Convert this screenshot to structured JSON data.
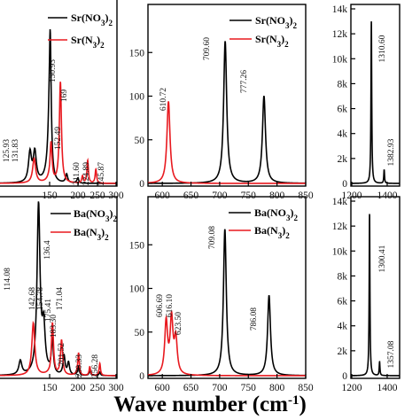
{
  "figure": {
    "xlabel_main": "Wave number (cm",
    "xlabel_sup": "-1",
    "xlabel_end": ")"
  },
  "legend_labels": {
    "sr_no3": {
      "base": "Sr(NO",
      "sub1": "3",
      "end": ")",
      "sub2": "2"
    },
    "sr_n3": {
      "base": "Sr(N",
      "sub1": "3",
      "end": ")",
      "sub2": "2"
    },
    "ba_no3": {
      "base": "Ba(NO",
      "sub1": "3",
      "end": ")",
      "sub2": "2"
    },
    "ba_n3": {
      "base": "Ba(N",
      "sub1": "3",
      "end": ")",
      "sub2": "2"
    },
    "ba_no3_alt": {
      "base": "Ba",
      "mid": "(",
      "tail": "NO",
      "sub1": "3",
      "end": ")",
      "sub2": "2"
    },
    "ba_n3_alt": {
      "base": "Ba",
      "mid": "(",
      "tail": "N",
      "sub1": "3",
      "end": ")",
      "sub2": "2"
    }
  },
  "colors": {
    "no3": "#000000",
    "n3": "#e8191f"
  },
  "chart_data": [
    {
      "type": "line",
      "panel": "top-left",
      "xlim": [
        0,
        300
      ],
      "ylim": [
        0,
        200
      ],
      "xticks": [
        150,
        200,
        250,
        300
      ],
      "yticks": [],
      "series": [
        {
          "name": "Sr(NO3)2",
          "color": "#000000",
          "peaks": [
            [
              125.93,
              0.17
            ],
            [
              131.83,
              0.17
            ],
            [
              150.93,
              0.88
            ],
            [
              180,
              0.05
            ],
            [
              200,
              0.03
            ]
          ]
        },
        {
          "name": "Sr(N3)2",
          "color": "#e8191f",
          "peaks": [
            [
              131,
              0.14
            ],
            [
              152.49,
              0.23
            ],
            [
              169,
              0.58
            ],
            [
              211.6,
              0.04
            ],
            [
              224.89,
              0.13
            ],
            [
              245.87,
              0.08
            ]
          ]
        }
      ],
      "annotations": [
        {
          "text": "125.93",
          "x": 125.93,
          "color": "black"
        },
        {
          "text": "131.83",
          "x": 131.83,
          "color": "black"
        },
        {
          "text": "150.93",
          "x": 150.93,
          "color": "black"
        },
        {
          "text": "152.49",
          "x": 152.49,
          "color": "red"
        },
        {
          "text": "169",
          "x": 169,
          "color": "red"
        },
        {
          "text": "211.60",
          "x": 211.6,
          "color": "black"
        },
        {
          "text": "224.89",
          "x": 224.89,
          "color": "black"
        },
        {
          "text": "245.87",
          "x": 245.87,
          "color": "black"
        }
      ],
      "legend": "top-right"
    },
    {
      "type": "line",
      "panel": "top-middle",
      "xlim": [
        575,
        850
      ],
      "ylim": [
        0,
        200
      ],
      "xticks": [
        600,
        650,
        700,
        750,
        800,
        850
      ],
      "yticks": [
        0,
        50,
        100,
        150
      ],
      "series": [
        {
          "name": "Sr(NO3)2",
          "color": "#000000",
          "peaks": [
            [
              709.6,
              163
            ],
            [
              777.26,
              100
            ]
          ]
        },
        {
          "name": "Sr(N3)2",
          "color": "#e8191f",
          "peaks": [
            [
              610.72,
              94
            ]
          ]
        }
      ],
      "annotations": [
        {
          "text": "610.72",
          "x": 610.72,
          "color": "black"
        },
        {
          "text": "709.60",
          "x": 709.6,
          "color": "black"
        },
        {
          "text": "777.26",
          "x": 777.26,
          "color": "black"
        }
      ],
      "legend": "top-right"
    },
    {
      "type": "line",
      "panel": "top-right",
      "xlim": [
        1200,
        1500
      ],
      "ylim": [
        0,
        14000
      ],
      "xticks": [
        1200,
        1400
      ],
      "yticks": [
        "0",
        "2k",
        "4k",
        "6k",
        "8k",
        "10k",
        "12k",
        "14k"
      ],
      "series": [
        {
          "name": "Sr(NO3)2",
          "color": "#000000",
          "peaks": [
            [
              1310.6,
              13000
            ],
            [
              1382.93,
              1100
            ]
          ]
        }
      ],
      "annotations": [
        {
          "text": "1310.60",
          "x": 1310.6,
          "color": "black"
        },
        {
          "text": "1382.93",
          "x": 1382.93,
          "color": "black"
        }
      ]
    },
    {
      "type": "line",
      "panel": "bottom-left",
      "xlim": [
        0,
        300
      ],
      "ylim": [
        0,
        200
      ],
      "xticks": [
        150,
        200,
        250,
        300
      ],
      "yticks": [],
      "series": [
        {
          "name": "Ba(NO3)2",
          "color": "#000000",
          "peaks": [
            [
              114.08,
              0.08
            ],
            [
              136.4,
              0.97
            ],
            [
              142.68,
              0.25
            ],
            [
              154.78,
              0.2
            ],
            [
              175.41,
              0.11
            ],
            [
              183.3,
              0.07
            ],
            [
              201.52,
              0.05
            ],
            [
              230.33,
              0.03
            ],
            [
              256.28,
              0.02
            ]
          ]
        },
        {
          "name": "Ba(N3)2",
          "color": "#e8191f",
          "peaks": [
            [
              130,
              0.3
            ],
            [
              155,
              0.3
            ],
            [
              171.04,
              0.2
            ],
            [
              201.52,
              0.13
            ],
            [
              230.33,
              0.05
            ],
            [
              256.28,
              0.07
            ]
          ]
        }
      ],
      "annotations": [
        {
          "text": "136.4",
          "x": 136.4,
          "color": "black"
        },
        {
          "text": "114.08",
          "x": 114.08,
          "color": "black"
        },
        {
          "text": "142.68",
          "x": 142.68,
          "color": "black"
        },
        {
          "text": "154.78",
          "x": 154.78,
          "color": "black"
        },
        {
          "text": "175.41",
          "x": 175.41,
          "color": "black"
        },
        {
          "text": "171.04",
          "x": 171.04,
          "color": "black"
        },
        {
          "text": "183.30",
          "x": 183.3,
          "color": "black"
        },
        {
          "text": "201.52",
          "x": 201.52,
          "color": "black"
        },
        {
          "text": "230.33",
          "x": 230.33,
          "color": "black"
        },
        {
          "text": "256.28",
          "x": 256.28,
          "color": "black"
        }
      ],
      "legend": "top-right"
    },
    {
      "type": "line",
      "panel": "bottom-middle",
      "xlim": [
        575,
        850
      ],
      "ylim": [
        0,
        200
      ],
      "xticks": [
        600,
        650,
        700,
        750,
        800,
        850
      ],
      "yticks": [
        0,
        50,
        100,
        150
      ],
      "series": [
        {
          "name": "Ba(NO3)2",
          "color": "#000000",
          "peaks": [
            [
              709.08,
              168
            ],
            [
              786.08,
              92
            ]
          ]
        },
        {
          "name": "Ba(N3)2",
          "color": "#e8191f",
          "peaks": [
            [
              606.69,
              60
            ],
            [
              616.1,
              62
            ],
            [
              623.5,
              40
            ]
          ]
        }
      ],
      "annotations": [
        {
          "text": "606.69",
          "x": 606.69,
          "color": "black"
        },
        {
          "text": "616.10",
          "x": 616.1,
          "color": "black"
        },
        {
          "text": "623.50",
          "x": 623.5,
          "color": "black"
        },
        {
          "text": "709.08",
          "x": 709.08,
          "color": "black"
        },
        {
          "text": "786.08",
          "x": 786.08,
          "color": "black"
        }
      ],
      "legend": "top-right"
    },
    {
      "type": "line",
      "panel": "bottom-right",
      "xlim": [
        1200,
        1500
      ],
      "ylim": [
        0,
        14000
      ],
      "xticks": [
        1200,
        1400
      ],
      "yticks": [
        "0",
        "2k",
        "4k",
        "6k",
        "8k",
        "10k",
        "12k",
        "14k"
      ],
      "series": [
        {
          "name": "Ba(NO3)2",
          "color": "#000000",
          "peaks": [
            [
              1300.41,
              13000
            ],
            [
              1357.08,
              1100
            ]
          ]
        }
      ],
      "annotations": [
        {
          "text": "1300.41",
          "x": 1300.41,
          "color": "black"
        },
        {
          "text": "1357.08",
          "x": 1357.08,
          "color": "black"
        }
      ]
    }
  ]
}
